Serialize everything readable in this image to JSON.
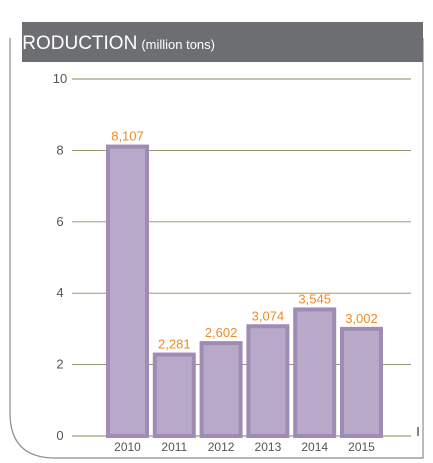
{
  "chart_data": {
    "type": "bar",
    "title": "PRODUCTION",
    "title_unit": "(million tons)",
    "categories": [
      "2010",
      "2011",
      "2012",
      "2013",
      "2014",
      "2015"
    ],
    "values": [
      8.107,
      2.281,
      2.602,
      3.074,
      3.545,
      3.002
    ],
    "data_labels": [
      "8,107",
      "2,281",
      "2,602",
      "3,074",
      "3,545",
      "3,002"
    ],
    "yticks": [
      "0",
      "2",
      "4",
      "6",
      "8",
      "10"
    ],
    "ylim": [
      0,
      10
    ],
    "xlabel": "",
    "ylabel": "",
    "grid": true,
    "colors": {
      "bar_fill": "#b8a9c9",
      "bar_border": "#a08bb5",
      "data_label": "#f08a24",
      "title_band": "#6d6e71",
      "grid": "#8a8a5a"
    }
  }
}
